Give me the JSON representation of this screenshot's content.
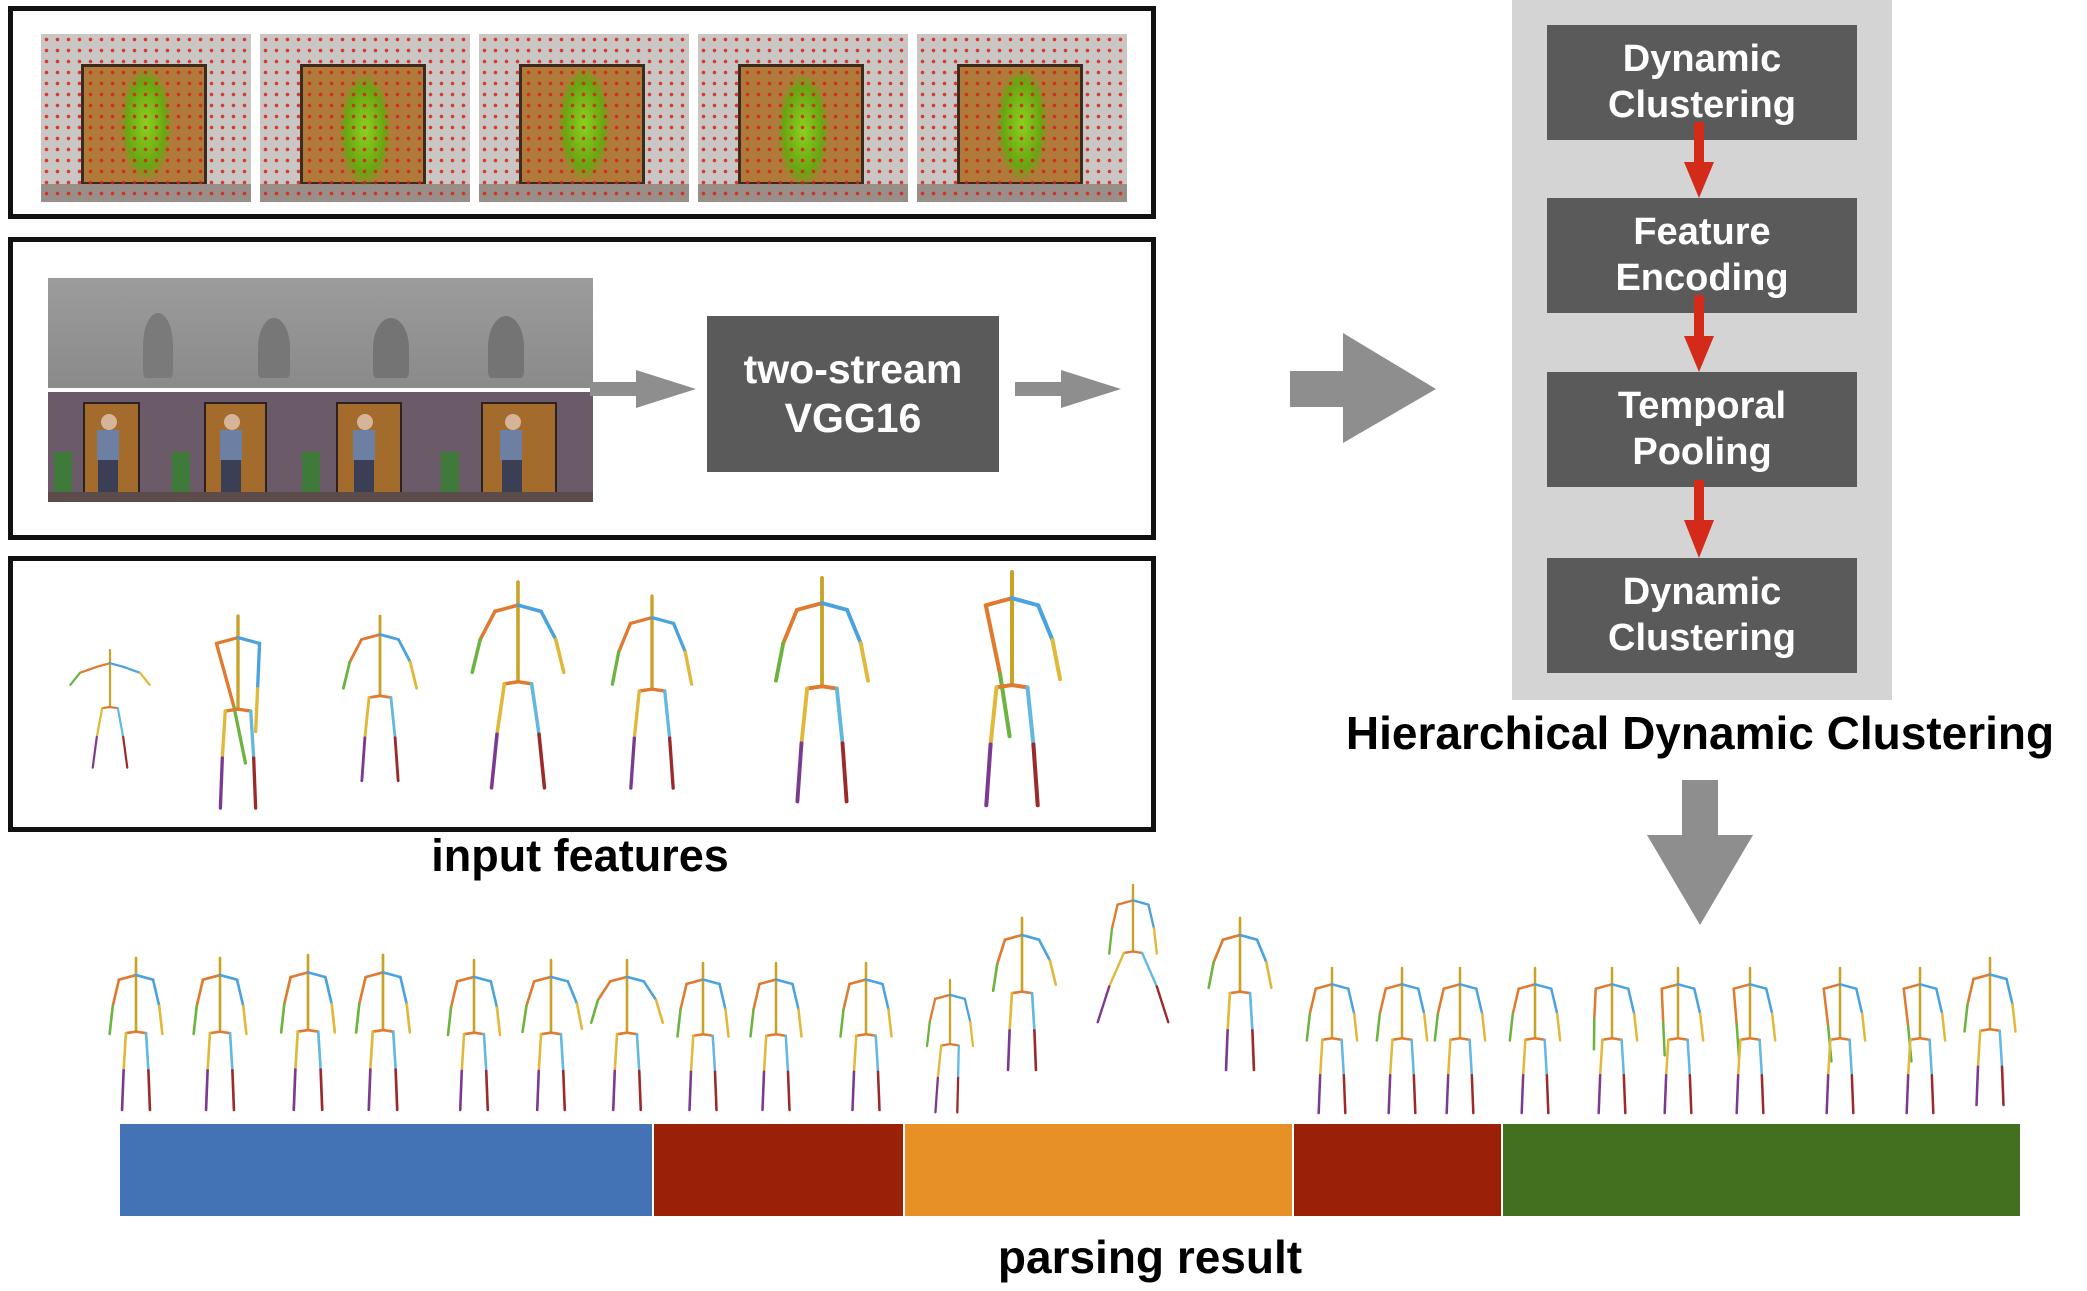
{
  "input_features_label": "input features",
  "vgg_box_label": "two-stream\nVGG16",
  "hdc": {
    "title": "Hierarchical Dynamic Clustering",
    "steps": [
      "Dynamic\nClustering",
      "Feature\nEncoding",
      "Temporal\nPooling",
      "Dynamic\nClustering"
    ]
  },
  "parsing_label": "parsing result",
  "segments": [
    {
      "color": "#4373b5",
      "fraction": 0.281
    },
    {
      "color": "#9a2007",
      "fraction": 0.132
    },
    {
      "color": "#e69025",
      "fraction": 0.205
    },
    {
      "color": "#9a2007",
      "fraction": 0.11
    },
    {
      "color": "#43701e",
      "fraction": 0.272
    }
  ],
  "colors": {
    "dark_box": "#5a5a5a",
    "light_panel": "#d4d4d4",
    "red_arrow": "#d42a1a",
    "gray_arrow": "#8e8e8e"
  },
  "icons": [
    "video-frame-thumbnail",
    "optical-flow-thumbnail",
    "rgb-frame-thumbnail",
    "skeleton-pose-icon",
    "right-arrow-icon",
    "down-arrow-icon"
  ]
}
